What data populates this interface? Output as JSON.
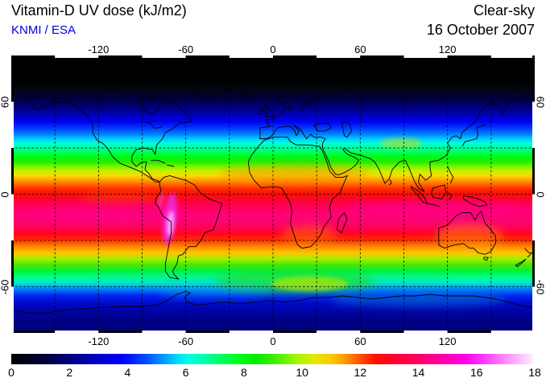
{
  "header": {
    "title": "Vitamin-D UV dose (kJ/m2)",
    "source": "KNMI / ESA",
    "source_color": "#0000dd",
    "condition": "Clear-sky",
    "date": "16 October 2007"
  },
  "axes": {
    "lon_tick_labels": [
      "-120",
      "-60",
      "0",
      "60",
      "120"
    ],
    "lon_tick_values": [
      -120,
      -60,
      0,
      60,
      120
    ],
    "lat_tick_labels": [
      "60",
      "0",
      "-60"
    ],
    "lat_tick_values": [
      60,
      0,
      -60
    ],
    "grid_step_deg": 30,
    "lon_range": [
      -180,
      180
    ],
    "lat_range": [
      -90,
      90
    ]
  },
  "colorbar": {
    "min": 0,
    "max": 18,
    "units": "kJ/m2",
    "tick_labels": [
      "0",
      "2",
      "4",
      "6",
      "8",
      "10",
      "12",
      "14",
      "16",
      "18"
    ],
    "tick_values": [
      0,
      2,
      4,
      6,
      8,
      10,
      12,
      14,
      16,
      18
    ],
    "stops": [
      [
        0,
        "#000000"
      ],
      [
        1.2,
        "#000040"
      ],
      [
        2,
        "#00007d"
      ],
      [
        3,
        "#0000c8"
      ],
      [
        3.8,
        "#0000ff"
      ],
      [
        4.6,
        "#0048ff"
      ],
      [
        5.2,
        "#0096ff"
      ],
      [
        5.7,
        "#00d8ff"
      ],
      [
        6.1,
        "#00ffe4"
      ],
      [
        6.6,
        "#00ffb0"
      ],
      [
        7.2,
        "#00ff64"
      ],
      [
        7.8,
        "#00ff1e"
      ],
      [
        8.4,
        "#06ea00"
      ],
      [
        9.1,
        "#46ee00"
      ],
      [
        9.8,
        "#a0f600"
      ],
      [
        10.4,
        "#e6e800"
      ],
      [
        11,
        "#ffc800"
      ],
      [
        11.5,
        "#ff9600"
      ],
      [
        12,
        "#ff5000"
      ],
      [
        12.5,
        "#ff1000"
      ],
      [
        13.1,
        "#ff0028"
      ],
      [
        13.8,
        "#ff0055"
      ],
      [
        14.4,
        "#ff0085"
      ],
      [
        15,
        "#ff00b4"
      ],
      [
        15.6,
        "#ff00e6"
      ],
      [
        16.1,
        "#fb2cff"
      ],
      [
        16.7,
        "#ff6cff"
      ],
      [
        17.3,
        "#ffaaff"
      ],
      [
        17.8,
        "#ffdcff"
      ],
      [
        18,
        "#ffffff"
      ]
    ]
  },
  "chart_data": {
    "type": "heatmap",
    "title": "Vitamin-D UV dose (kJ/m2)",
    "subtitle": "Clear-sky, 16 October 2007",
    "source": "KNMI / ESA",
    "projection": "equirectangular",
    "units": "kJ/m2",
    "value_range": [
      0,
      18
    ],
    "lon_range": [
      -180,
      180
    ],
    "lat_range": [
      -90,
      90
    ],
    "grid": "dashed, every 30 degrees",
    "zonal_profile": {
      "lat": [
        90,
        80,
        72,
        65,
        60,
        55,
        50,
        45,
        40,
        35,
        30,
        25,
        20,
        15,
        10,
        5,
        0,
        -5,
        -10,
        -15,
        -20,
        -25,
        -30,
        -35,
        -40,
        -45,
        -50,
        -55,
        -60,
        -65,
        -70,
        -75,
        -80,
        -90
      ],
      "dose": [
        0,
        0,
        0.1,
        0.5,
        1.4,
        2.2,
        3.1,
        4.0,
        4.9,
        5.7,
        6.6,
        7.6,
        8.8,
        10.0,
        11.1,
        11.9,
        12.6,
        13.2,
        13.8,
        14.0,
        13.7,
        13.1,
        12.1,
        10.9,
        9.9,
        8.7,
        7.5,
        6.2,
        5.0,
        4.1,
        3.3,
        2.7,
        2.2,
        1.8
      ]
    },
    "anomalies": [
      {
        "name": "andes-altiplano-maximum",
        "lat": -16,
        "lon": -70,
        "approx_value": 16.5
      },
      {
        "name": "central-pacific-pink-band",
        "lat": -12,
        "lon": -120,
        "approx_value": 14.3
      },
      {
        "name": "indonesia-indian-ocean-pink-band",
        "lat": -9,
        "lon": 115,
        "approx_value": 14.5
      },
      {
        "name": "sahel-arabia-orange",
        "lat": 13,
        "lon": 15,
        "approx_value": 11.5
      },
      {
        "name": "tibetan-plateau-patch",
        "lat": 33,
        "lon": 88,
        "approx_value": 9.0
      },
      {
        "name": "southern-ocean-green-patch",
        "lat": -57,
        "lon": 20,
        "approx_value": 8.5
      },
      {
        "name": "east-antarctic-coast-teal",
        "lat": -68,
        "lon": 100,
        "approx_value": 5.5
      }
    ],
    "zonal_colors": [
      [
        90,
        "#000000"
      ],
      [
        74,
        "#000000"
      ],
      [
        68,
        "#050514"
      ],
      [
        62,
        "#00003f"
      ],
      [
        57,
        "#000075"
      ],
      [
        52,
        "#0000b0"
      ],
      [
        47,
        "#0000f0"
      ],
      [
        43,
        "#0038ff"
      ],
      [
        39,
        "#0080ff"
      ],
      [
        36,
        "#00c8ff"
      ],
      [
        33,
        "#00ffd8"
      ],
      [
        30,
        "#00ff9d"
      ],
      [
        27,
        "#00ff55"
      ],
      [
        24,
        "#00f911"
      ],
      [
        21,
        "#22ee00"
      ],
      [
        18,
        "#77f300"
      ],
      [
        15,
        "#c8f000"
      ],
      [
        12,
        "#f7dc00"
      ],
      [
        9,
        "#ff9d00"
      ],
      [
        6,
        "#ff5e00"
      ],
      [
        3,
        "#ff2600"
      ],
      [
        0,
        "#ff0d04"
      ],
      [
        -4,
        "#fb0433"
      ],
      [
        -8,
        "#ff0059"
      ],
      [
        -13,
        "#ff0374"
      ],
      [
        -18,
        "#fa0570"
      ],
      [
        -22,
        "#ff0350"
      ],
      [
        -26,
        "#ff0620"
      ],
      [
        -30,
        "#ff3300"
      ],
      [
        -34,
        "#ff8800"
      ],
      [
        -38,
        "#ffc400"
      ],
      [
        -42,
        "#a5ee00"
      ],
      [
        -46,
        "#44e800"
      ],
      [
        -50,
        "#00f23a"
      ],
      [
        -54,
        "#00ff91"
      ],
      [
        -58,
        "#00e2d6"
      ],
      [
        -62,
        "#0077f8"
      ],
      [
        -66,
        "#0022f0"
      ],
      [
        -71,
        "#0009c8"
      ],
      [
        -76,
        "#0003a4"
      ],
      [
        -82,
        "#000287"
      ],
      [
        -90,
        "#000277"
      ]
    ],
    "legend_position": "bottom colorbar"
  }
}
